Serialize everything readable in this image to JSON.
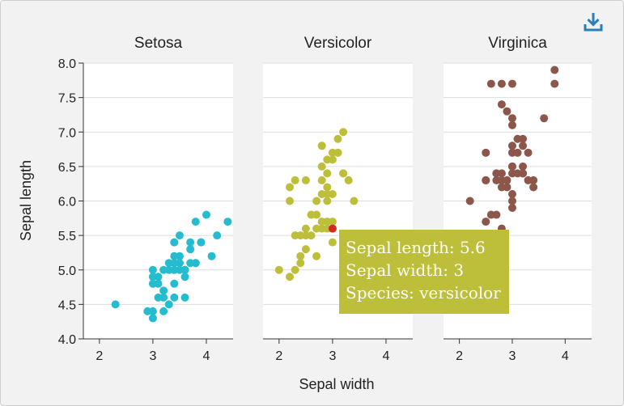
{
  "toolbar": {
    "download_icon": "download-icon"
  },
  "chart_data": {
    "type": "scatter",
    "facets": [
      "Setosa",
      "Versicolor",
      "Virginica"
    ],
    "xlabel": "Sepal width",
    "ylabel": "Sepal length",
    "xlim": [
      1.7,
      4.5
    ],
    "ylim": [
      4.0,
      8.0
    ],
    "xticks": [
      2,
      3,
      4
    ],
    "yticks": [
      "4.0",
      "4.5",
      "5.0",
      "5.5",
      "6.0",
      "6.5",
      "7.0",
      "7.5",
      "8.0"
    ],
    "grid": "horizontal",
    "colors": {
      "setosa": "#26bcd0",
      "versicolor": "#bdbf3a",
      "virginica": "#8c564b",
      "highlight": "#d62728"
    },
    "series": [
      {
        "facet": "Setosa",
        "color": "#26bcd0",
        "points": [
          [
            2.3,
            4.5
          ],
          [
            2.9,
            4.4
          ],
          [
            3,
            4.4
          ],
          [
            3,
            4.3
          ],
          [
            3.2,
            4.4
          ],
          [
            3.2,
            4.6
          ],
          [
            3.1,
            4.6
          ],
          [
            3.4,
            4.6
          ],
          [
            3.6,
            4.6
          ],
          [
            3.3,
            4.5
          ],
          [
            3,
            4.8
          ],
          [
            3,
            4.9
          ],
          [
            3.1,
            4.9
          ],
          [
            3.1,
            4.8
          ],
          [
            3,
            5
          ],
          [
            3.2,
            5
          ],
          [
            3.3,
            5
          ],
          [
            3.4,
            5
          ],
          [
            3.5,
            5
          ],
          [
            3.6,
            5
          ],
          [
            3.2,
            4.7
          ],
          [
            3.4,
            4.8
          ],
          [
            3.3,
            5.1
          ],
          [
            3.4,
            5.1
          ],
          [
            3.5,
            5.1
          ],
          [
            3.7,
            5.1
          ],
          [
            3.8,
            5.1
          ],
          [
            3.6,
            4.9
          ],
          [
            3.4,
            5.2
          ],
          [
            3.5,
            5.2
          ],
          [
            4.1,
            5.2
          ],
          [
            3.4,
            5.4
          ],
          [
            3.7,
            5.4
          ],
          [
            3.9,
            5.4
          ],
          [
            3.7,
            5.3
          ],
          [
            4.4,
            5.7
          ],
          [
            3.8,
            5.7
          ],
          [
            4,
            5.8
          ],
          [
            4.2,
            5.5
          ],
          [
            3.5,
            5.5
          ],
          [
            3.4,
            5.4
          ],
          [
            3.9,
            5.4
          ],
          [
            3.8,
            5.1
          ],
          [
            3.6,
            5
          ]
        ]
      },
      {
        "facet": "Versicolor",
        "color": "#bdbf3a",
        "points": [
          [
            2,
            5
          ],
          [
            2.2,
            4.9
          ],
          [
            2.3,
            5
          ],
          [
            2.4,
            5.1
          ],
          [
            2.5,
            5.6
          ],
          [
            2.3,
            5.5
          ],
          [
            2.4,
            5.5
          ],
          [
            2.5,
            5.5
          ],
          [
            2.6,
            5.5
          ],
          [
            2.7,
            5.8
          ],
          [
            2.6,
            5.8
          ],
          [
            2.7,
            5.6
          ],
          [
            2.8,
            5.7
          ],
          [
            2.9,
            5.7
          ],
          [
            3,
            5.7
          ],
          [
            2.8,
            5.6
          ],
          [
            2.9,
            5.6
          ],
          [
            3,
            5.4
          ],
          [
            3,
            5.6
          ],
          [
            2.2,
            6
          ],
          [
            2.3,
            6.3
          ],
          [
            2.2,
            6.2
          ],
          [
            2.7,
            6
          ],
          [
            2.9,
            6
          ],
          [
            3.4,
            6
          ],
          [
            2.8,
            6.1
          ],
          [
            3,
            6.1
          ],
          [
            2.9,
            6.2
          ],
          [
            2.5,
            6.3
          ],
          [
            2.8,
            6.3
          ],
          [
            2.9,
            6.4
          ],
          [
            3.2,
            6.4
          ],
          [
            2.8,
            6.5
          ],
          [
            3,
            6.6
          ],
          [
            2.9,
            6.6
          ],
          [
            3.1,
            6.7
          ],
          [
            3,
            6.7
          ],
          [
            2.8,
            6.8
          ],
          [
            3.1,
            6.9
          ],
          [
            3.2,
            7
          ],
          [
            2.8,
            6.8
          ],
          [
            3.1,
            6.7
          ],
          [
            3.3,
            6.3
          ],
          [
            3.2,
            6.4
          ],
          [
            2.7,
            5.2
          ],
          [
            2.4,
            5.2
          ],
          [
            2.5,
            5.3
          ],
          [
            2.9,
            6.1
          ]
        ]
      },
      {
        "facet": "Virginica",
        "color": "#8c564b",
        "points": [
          [
            2.2,
            6
          ],
          [
            2.5,
            6.7
          ],
          [
            2.5,
            6.3
          ],
          [
            2.5,
            5.7
          ],
          [
            2.6,
            5.8
          ],
          [
            2.7,
            5.8
          ],
          [
            2.7,
            6.3
          ],
          [
            2.7,
            6.4
          ],
          [
            2.8,
            6.4
          ],
          [
            2.8,
            6.3
          ],
          [
            2.8,
            7.4
          ],
          [
            2.8,
            5.6
          ],
          [
            2.8,
            6.2
          ],
          [
            2.9,
            6.3
          ],
          [
            2.9,
            7.3
          ],
          [
            3,
            6.5
          ],
          [
            3,
            5.9
          ],
          [
            3,
            6
          ],
          [
            3,
            6.1
          ],
          [
            3,
            7.1
          ],
          [
            3,
            7.2
          ],
          [
            3,
            6.5
          ],
          [
            3,
            6.7
          ],
          [
            3.1,
            6.9
          ],
          [
            3.1,
            6.7
          ],
          [
            3.2,
            6.9
          ],
          [
            3.2,
            6.5
          ],
          [
            3.2,
            6.4
          ],
          [
            3.3,
            6.3
          ],
          [
            3.3,
            6.7
          ],
          [
            3.4,
            6.2
          ],
          [
            3.4,
            6.3
          ],
          [
            3.6,
            7.2
          ],
          [
            3.8,
            7.7
          ],
          [
            3.8,
            7.9
          ],
          [
            2.6,
            7.7
          ],
          [
            2.8,
            7.7
          ],
          [
            3,
            7.7
          ],
          [
            3.2,
            6.8
          ],
          [
            3.1,
            6.4
          ],
          [
            3,
            6.4
          ],
          [
            2.7,
            6.4
          ],
          [
            3.2,
            6.4
          ],
          [
            2.5,
            6.3
          ],
          [
            2.9,
            6.2
          ],
          [
            3,
            6.8
          ]
        ]
      }
    ],
    "highlight": {
      "facet": "Versicolor",
      "x": 3,
      "y": 5.6
    }
  },
  "tooltip": {
    "lines": [
      "Sepal length: 5.6",
      "Sepal width: 3",
      "Species: versicolor"
    ]
  }
}
